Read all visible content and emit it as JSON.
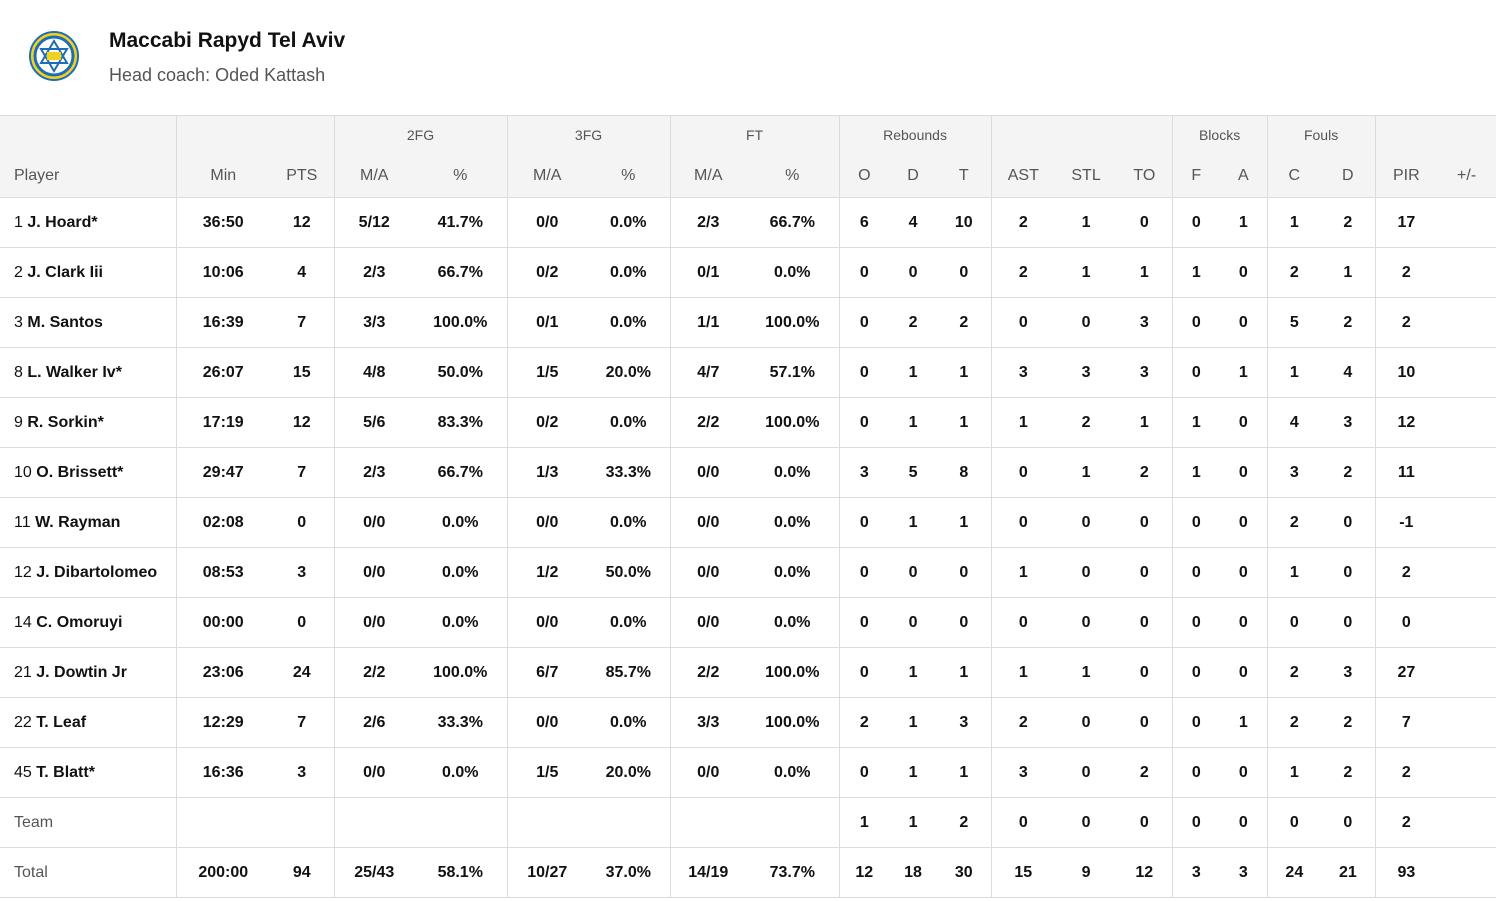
{
  "team": {
    "name": "Maccabi Rapyd Tel Aviv",
    "coach": "Head coach: Oded Kattash"
  },
  "groups": [
    "2FG",
    "3FG",
    "FT",
    "Rebounds",
    "Blocks",
    "Fouls"
  ],
  "columns": [
    "Player",
    "Min",
    "PTS",
    "M/A",
    "%",
    "M/A",
    "%",
    "M/A",
    "%",
    "O",
    "D",
    "T",
    "AST",
    "STL",
    "TO",
    "F",
    "A",
    "C",
    "D",
    "PIR",
    "+/-"
  ],
  "rows": [
    {
      "num": "1",
      "name": "J. Hoard*",
      "stats": [
        "36:50",
        "12",
        "5/12",
        "41.7%",
        "0/0",
        "0.0%",
        "2/3",
        "66.7%",
        "6",
        "4",
        "10",
        "2",
        "1",
        "0",
        "0",
        "1",
        "1",
        "2",
        "17",
        ""
      ]
    },
    {
      "num": "2",
      "name": "J. Clark Iii",
      "stats": [
        "10:06",
        "4",
        "2/3",
        "66.7%",
        "0/2",
        "0.0%",
        "0/1",
        "0.0%",
        "0",
        "0",
        "0",
        "2",
        "1",
        "1",
        "1",
        "0",
        "2",
        "1",
        "2",
        ""
      ]
    },
    {
      "num": "3",
      "name": "M. Santos",
      "stats": [
        "16:39",
        "7",
        "3/3",
        "100.0%",
        "0/1",
        "0.0%",
        "1/1",
        "100.0%",
        "0",
        "2",
        "2",
        "0",
        "0",
        "3",
        "0",
        "0",
        "5",
        "2",
        "2",
        ""
      ]
    },
    {
      "num": "8",
      "name": "L. Walker Iv*",
      "stats": [
        "26:07",
        "15",
        "4/8",
        "50.0%",
        "1/5",
        "20.0%",
        "4/7",
        "57.1%",
        "0",
        "1",
        "1",
        "3",
        "3",
        "3",
        "0",
        "1",
        "1",
        "4",
        "10",
        ""
      ]
    },
    {
      "num": "9",
      "name": "R. Sorkin*",
      "stats": [
        "17:19",
        "12",
        "5/6",
        "83.3%",
        "0/2",
        "0.0%",
        "2/2",
        "100.0%",
        "0",
        "1",
        "1",
        "1",
        "2",
        "1",
        "1",
        "0",
        "4",
        "3",
        "12",
        ""
      ]
    },
    {
      "num": "10",
      "name": "O. Brissett*",
      "stats": [
        "29:47",
        "7",
        "2/3",
        "66.7%",
        "1/3",
        "33.3%",
        "0/0",
        "0.0%",
        "3",
        "5",
        "8",
        "0",
        "1",
        "2",
        "1",
        "0",
        "3",
        "2",
        "11",
        ""
      ]
    },
    {
      "num": "11",
      "name": "W. Rayman",
      "stats": [
        "02:08",
        "0",
        "0/0",
        "0.0%",
        "0/0",
        "0.0%",
        "0/0",
        "0.0%",
        "0",
        "1",
        "1",
        "0",
        "0",
        "0",
        "0",
        "0",
        "2",
        "0",
        "-1",
        ""
      ]
    },
    {
      "num": "12",
      "name": "J. Dibartolomeo",
      "stats": [
        "08:53",
        "3",
        "0/0",
        "0.0%",
        "1/2",
        "50.0%",
        "0/0",
        "0.0%",
        "0",
        "0",
        "0",
        "1",
        "0",
        "0",
        "0",
        "0",
        "1",
        "0",
        "2",
        ""
      ]
    },
    {
      "num": "14",
      "name": "C. Omoruyi",
      "stats": [
        "00:00",
        "0",
        "0/0",
        "0.0%",
        "0/0",
        "0.0%",
        "0/0",
        "0.0%",
        "0",
        "0",
        "0",
        "0",
        "0",
        "0",
        "0",
        "0",
        "0",
        "0",
        "0",
        ""
      ]
    },
    {
      "num": "21",
      "name": "J. Dowtin Jr",
      "stats": [
        "23:06",
        "24",
        "2/2",
        "100.0%",
        "6/7",
        "85.7%",
        "2/2",
        "100.0%",
        "0",
        "1",
        "1",
        "1",
        "1",
        "0",
        "0",
        "0",
        "2",
        "3",
        "27",
        ""
      ]
    },
    {
      "num": "22",
      "name": "T. Leaf",
      "stats": [
        "12:29",
        "7",
        "2/6",
        "33.3%",
        "0/0",
        "0.0%",
        "3/3",
        "100.0%",
        "2",
        "1",
        "3",
        "2",
        "0",
        "0",
        "0",
        "1",
        "2",
        "2",
        "7",
        ""
      ]
    },
    {
      "num": "45",
      "name": "T. Blatt*",
      "stats": [
        "16:36",
        "3",
        "0/0",
        "0.0%",
        "1/5",
        "20.0%",
        "0/0",
        "0.0%",
        "0",
        "1",
        "1",
        "3",
        "0",
        "2",
        "0",
        "0",
        "1",
        "2",
        "2",
        ""
      ]
    }
  ],
  "team_row": {
    "label": "Team",
    "stats": [
      "",
      "",
      "",
      "",
      "",
      "",
      "",
      "",
      "1",
      "1",
      "2",
      "0",
      "0",
      "0",
      "0",
      "0",
      "0",
      "0",
      "2",
      ""
    ]
  },
  "total_row": {
    "label": "Total",
    "stats": [
      "200:00",
      "94",
      "25/43",
      "58.1%",
      "10/27",
      "37.0%",
      "14/19",
      "73.7%",
      "12",
      "18",
      "30",
      "15",
      "9",
      "12",
      "3",
      "3",
      "24",
      "21",
      "93",
      ""
    ]
  },
  "colors": {
    "header_bg": "#f4f4f4",
    "border": "#dcdcdc",
    "logo_blue": "#1f6db5",
    "logo_yellow": "#f2d21e"
  }
}
